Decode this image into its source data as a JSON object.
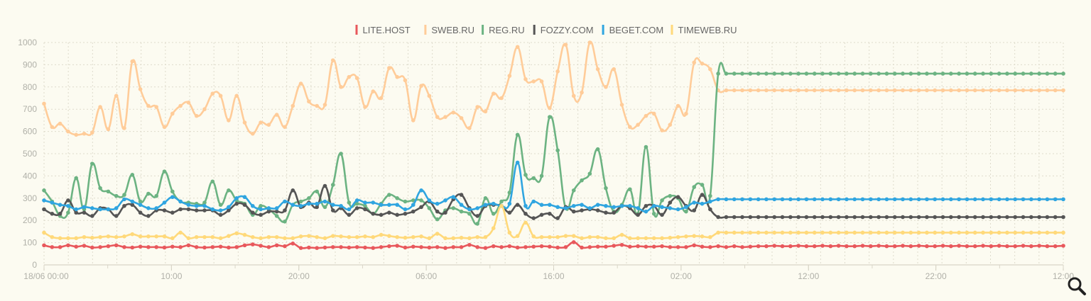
{
  "chart_data": {
    "type": "line",
    "x_labels": [
      "18/06 00:00",
      "10:00",
      "20:00",
      "06:00",
      "16:00",
      "02:00",
      "12:00",
      "22:00",
      "12:00"
    ],
    "x_count": 128,
    "y_ticks": [
      0,
      100,
      200,
      300,
      400,
      500,
      600,
      700,
      800,
      900,
      1000
    ],
    "ylim": [
      0,
      1000
    ],
    "grid": true,
    "legend_position": "top-center",
    "series": [
      {
        "name": "LITE.HOST",
        "color": "#e8585c",
        "values": [
          88,
          80,
          80,
          88,
          82,
          86,
          78,
          80,
          84,
          88,
          80,
          78,
          82,
          80,
          80,
          78,
          82,
          80,
          88,
          80,
          78,
          80,
          82,
          78,
          80,
          88,
          92,
          86,
          80,
          88,
          84,
          96,
          76,
          78,
          76,
          78,
          80,
          80,
          78,
          80,
          78,
          76,
          80,
          84,
          86,
          78,
          82,
          80,
          78,
          80,
          76,
          80,
          80,
          90,
          80,
          76,
          84,
          80,
          84,
          78,
          80,
          82,
          84,
          82,
          78,
          80,
          102,
          78,
          80,
          82,
          82,
          86,
          90,
          82,
          84,
          82,
          82,
          84,
          80,
          80,
          80,
          88,
          82,
          80,
          84,
          80,
          84,
          80,
          82,
          84,
          84,
          86,
          84,
          84,
          86,
          84,
          84,
          86,
          84,
          86,
          84,
          84,
          86,
          84,
          86,
          84,
          84,
          86,
          84,
          86,
          84,
          84,
          86,
          84,
          86,
          84,
          84,
          86,
          84,
          86,
          84,
          84,
          86,
          84,
          86,
          84,
          84,
          86
        ]
      },
      {
        "name": "SWEB.RU",
        "color": "#ffcc99",
        "values": [
          725,
          620,
          635,
          600,
          585,
          590,
          595,
          710,
          610,
          760,
          615,
          915,
          790,
          715,
          710,
          620,
          680,
          715,
          730,
          670,
          700,
          770,
          760,
          650,
          760,
          640,
          590,
          640,
          630,
          675,
          620,
          715,
          815,
          735,
          715,
          720,
          920,
          800,
          845,
          840,
          710,
          780,
          750,
          885,
          845,
          830,
          650,
          805,
          760,
          665,
          665,
          685,
          660,
          615,
          710,
          690,
          770,
          750,
          850,
          980,
          835,
          825,
          825,
          705,
          870,
          990,
          760,
          775,
          1000,
          880,
          800,
          880,
          720,
          620,
          630,
          670,
          680,
          605,
          630,
          715,
          680,
          910,
          905,
          880,
          785,
          785,
          785,
          785,
          785,
          785,
          785,
          785,
          785,
          785,
          785,
          785,
          785,
          785,
          785,
          785,
          785,
          785,
          785,
          785,
          785,
          785,
          785,
          785,
          785,
          785,
          785,
          785,
          785,
          785,
          785,
          785,
          785,
          785,
          785,
          785,
          785,
          785,
          785,
          785,
          785,
          785,
          785,
          785
        ]
      },
      {
        "name": "REG.RU",
        "color": "#6cb382",
        "values": [
          335,
          285,
          220,
          235,
          390,
          250,
          455,
          345,
          330,
          310,
          315,
          405,
          285,
          320,
          310,
          420,
          330,
          285,
          280,
          275,
          280,
          375,
          270,
          335,
          290,
          275,
          225,
          265,
          250,
          220,
          195,
          270,
          285,
          300,
          330,
          260,
          360,
          500,
          280,
          275,
          265,
          230,
          275,
          315,
          300,
          285,
          290,
          290,
          255,
          205,
          245,
          255,
          240,
          230,
          185,
          300,
          230,
          285,
          325,
          585,
          405,
          390,
          400,
          665,
          515,
          255,
          335,
          380,
          410,
          520,
          345,
          240,
          270,
          340,
          230,
          530,
          230,
          290,
          310,
          300,
          240,
          350,
          360,
          310,
          860,
          860,
          860,
          860,
          860,
          860,
          860,
          860,
          860,
          860,
          860,
          860,
          860,
          860,
          860,
          860,
          860,
          860,
          860,
          860,
          860,
          860,
          860,
          860,
          860,
          860,
          860,
          860,
          860,
          860,
          860,
          860,
          860,
          860,
          860,
          860,
          860,
          860,
          860,
          860,
          860,
          860,
          860,
          860
        ]
      },
      {
        "name": "FOZZY.COM",
        "color": "#555555",
        "values": [
          250,
          230,
          230,
          290,
          235,
          235,
          220,
          255,
          250,
          220,
          265,
          270,
          235,
          220,
          245,
          245,
          235,
          250,
          250,
          245,
          245,
          245,
          225,
          245,
          275,
          270,
          235,
          225,
          240,
          240,
          245,
          335,
          260,
          280,
          260,
          355,
          245,
          255,
          225,
          255,
          250,
          230,
          225,
          235,
          225,
          230,
          240,
          260,
          285,
          240,
          235,
          295,
          315,
          255,
          220,
          265,
          270,
          265,
          235,
          270,
          230,
          210,
          225,
          230,
          210,
          260,
          240,
          245,
          250,
          245,
          235,
          235,
          265,
          255,
          225,
          265,
          265,
          225,
          280,
          305,
          265,
          245,
          315,
          250,
          215,
          215,
          215,
          215,
          215,
          215,
          215,
          215,
          215,
          215,
          215,
          215,
          215,
          215,
          215,
          215,
          215,
          215,
          215,
          215,
          215,
          215,
          215,
          215,
          215,
          215,
          215,
          215,
          215,
          215,
          215,
          215,
          215,
          215,
          215,
          215,
          215,
          215,
          215,
          215,
          215,
          215,
          215,
          215
        ]
      },
      {
        "name": "BEGET.COM",
        "color": "#2fa5e0",
        "values": [
          290,
          280,
          270,
          265,
          250,
          260,
          255,
          250,
          250,
          255,
          295,
          285,
          270,
          255,
          255,
          280,
          305,
          285,
          270,
          265,
          265,
          250,
          245,
          260,
          300,
          305,
          265,
          250,
          255,
          255,
          285,
          270,
          265,
          275,
          275,
          285,
          270,
          265,
          250,
          290,
          280,
          280,
          270,
          270,
          270,
          250,
          270,
          335,
          290,
          275,
          290,
          305,
          270,
          250,
          255,
          270,
          275,
          265,
          275,
          460,
          265,
          285,
          270,
          270,
          260,
          255,
          265,
          270,
          255,
          270,
          265,
          260,
          265,
          265,
          255,
          240,
          265,
          260,
          255,
          250,
          260,
          280,
          275,
          285,
          295,
          295,
          295,
          295,
          295,
          295,
          295,
          295,
          295,
          295,
          295,
          295,
          295,
          295,
          295,
          295,
          295,
          295,
          295,
          295,
          295,
          295,
          295,
          295,
          295,
          295,
          295,
          295,
          295,
          295,
          295,
          295,
          295,
          295,
          295,
          295,
          295,
          295,
          295,
          295,
          295,
          295,
          295,
          295
        ]
      },
      {
        "name": "TIMEWEB.RU",
        "color": "#ffd97a",
        "values": [
          145,
          125,
          120,
          120,
          120,
          125,
          122,
          125,
          128,
          125,
          128,
          138,
          128,
          128,
          128,
          128,
          120,
          145,
          120,
          125,
          125,
          125,
          120,
          130,
          142,
          135,
          125,
          120,
          125,
          125,
          120,
          120,
          128,
          130,
          125,
          120,
          130,
          128,
          125,
          125,
          128,
          125,
          135,
          130,
          125,
          122,
          125,
          128,
          120,
          140,
          120,
          120,
          122,
          120,
          125,
          125,
          165,
          265,
          145,
          130,
          190,
          128,
          125,
          125,
          125,
          130,
          130,
          120,
          125,
          125,
          120,
          120,
          135,
          120,
          120,
          120,
          120,
          120,
          122,
          125,
          128,
          130,
          128,
          125,
          145,
          145,
          145,
          145,
          145,
          145,
          145,
          145,
          145,
          145,
          145,
          145,
          145,
          145,
          145,
          145,
          145,
          145,
          145,
          145,
          145,
          145,
          145,
          145,
          145,
          145,
          145,
          145,
          145,
          145,
          145,
          145,
          145,
          145,
          145,
          145,
          145,
          145,
          145,
          145,
          145,
          145,
          145,
          145
        ]
      }
    ]
  },
  "controls": {
    "zoom_icon": "magnifier-icon"
  }
}
